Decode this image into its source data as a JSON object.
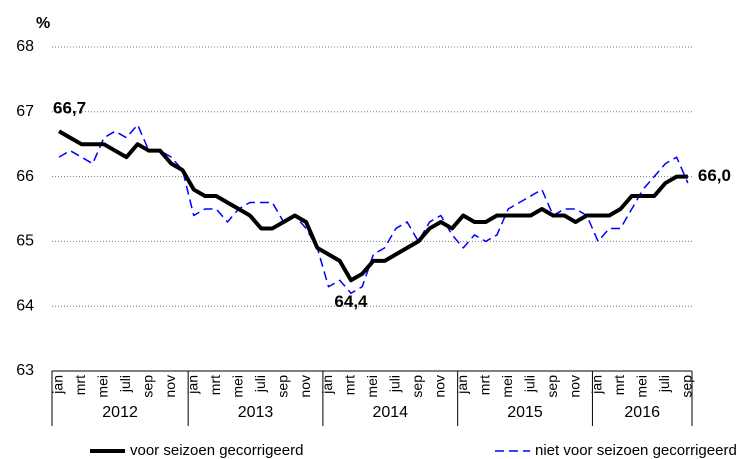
{
  "chart_data": {
    "type": "line",
    "ylabel": "%",
    "categories": [
      "jan",
      null,
      "mrt",
      null,
      "mei",
      null,
      "juli",
      null,
      "sep",
      null,
      "nov",
      null,
      "jan",
      null,
      "mrt",
      null,
      "mei",
      null,
      "juli",
      null,
      "sep",
      null,
      "nov",
      null,
      "jan",
      null,
      "mrt",
      null,
      "mei",
      null,
      "juli",
      null,
      "sep",
      null,
      "nov",
      null,
      "jan",
      null,
      "mrt",
      null,
      "mei",
      null,
      "juli",
      null,
      "sep",
      null,
      "nov",
      null,
      "jan",
      null,
      "mrt",
      null,
      "mei",
      null,
      "juli",
      null,
      "sep"
    ],
    "years": [
      "2012",
      "2013",
      "2014",
      "2015",
      "2016"
    ],
    "series": [
      {
        "name": "voor seizoen gecorrigeerd",
        "color": "#000000",
        "style": "solid",
        "values": [
          66.7,
          66.6,
          66.5,
          66.5,
          66.5,
          66.4,
          66.3,
          66.5,
          66.4,
          66.4,
          66.2,
          66.1,
          65.8,
          65.7,
          65.7,
          65.6,
          65.5,
          65.4,
          65.2,
          65.2,
          65.3,
          65.4,
          65.3,
          64.9,
          64.8,
          64.7,
          64.4,
          64.5,
          64.7,
          64.7,
          64.8,
          64.9,
          65.0,
          65.2,
          65.3,
          65.2,
          65.4,
          65.3,
          65.3,
          65.4,
          65.4,
          65.4,
          65.4,
          65.5,
          65.4,
          65.4,
          65.3,
          65.4,
          65.4,
          65.4,
          65.5,
          65.7,
          65.7,
          65.7,
          65.9,
          66.0,
          66.0
        ],
        "value_labels": [
          "66,7",
          null,
          null,
          null,
          null,
          null,
          null,
          null,
          null,
          null,
          null,
          null,
          null,
          null,
          null,
          null,
          null,
          null,
          null,
          null,
          null,
          null,
          null,
          null,
          null,
          null,
          "64,4",
          null,
          null,
          null,
          null,
          null,
          null,
          null,
          null,
          null,
          null,
          null,
          null,
          null,
          null,
          null,
          null,
          null,
          null,
          null,
          null,
          null,
          null,
          null,
          null,
          null,
          null,
          null,
          null,
          null,
          "66,0"
        ]
      },
      {
        "name": "niet voor seizoen gecorrigeerd",
        "color": "#0000ff",
        "style": "dashed",
        "values": [
          66.3,
          66.4,
          66.3,
          66.2,
          66.6,
          66.7,
          66.6,
          66.8,
          66.4,
          66.4,
          66.3,
          66.1,
          65.4,
          65.5,
          65.5,
          65.3,
          65.5,
          65.6,
          65.6,
          65.6,
          65.3,
          65.4,
          65.2,
          64.9,
          64.3,
          64.4,
          64.2,
          64.3,
          64.8,
          64.9,
          65.2,
          65.3,
          65.0,
          65.3,
          65.4,
          65.1,
          64.9,
          65.1,
          65.0,
          65.1,
          65.5,
          65.6,
          65.7,
          65.8,
          65.4,
          65.5,
          65.5,
          65.4,
          65.0,
          65.2,
          65.2,
          65.5,
          65.8,
          66.0,
          66.2,
          66.3,
          65.9
        ]
      }
    ],
    "ylim": [
      63,
      68
    ],
    "yticks": [
      63,
      64,
      65,
      66,
      67,
      68
    ],
    "grid": true
  }
}
